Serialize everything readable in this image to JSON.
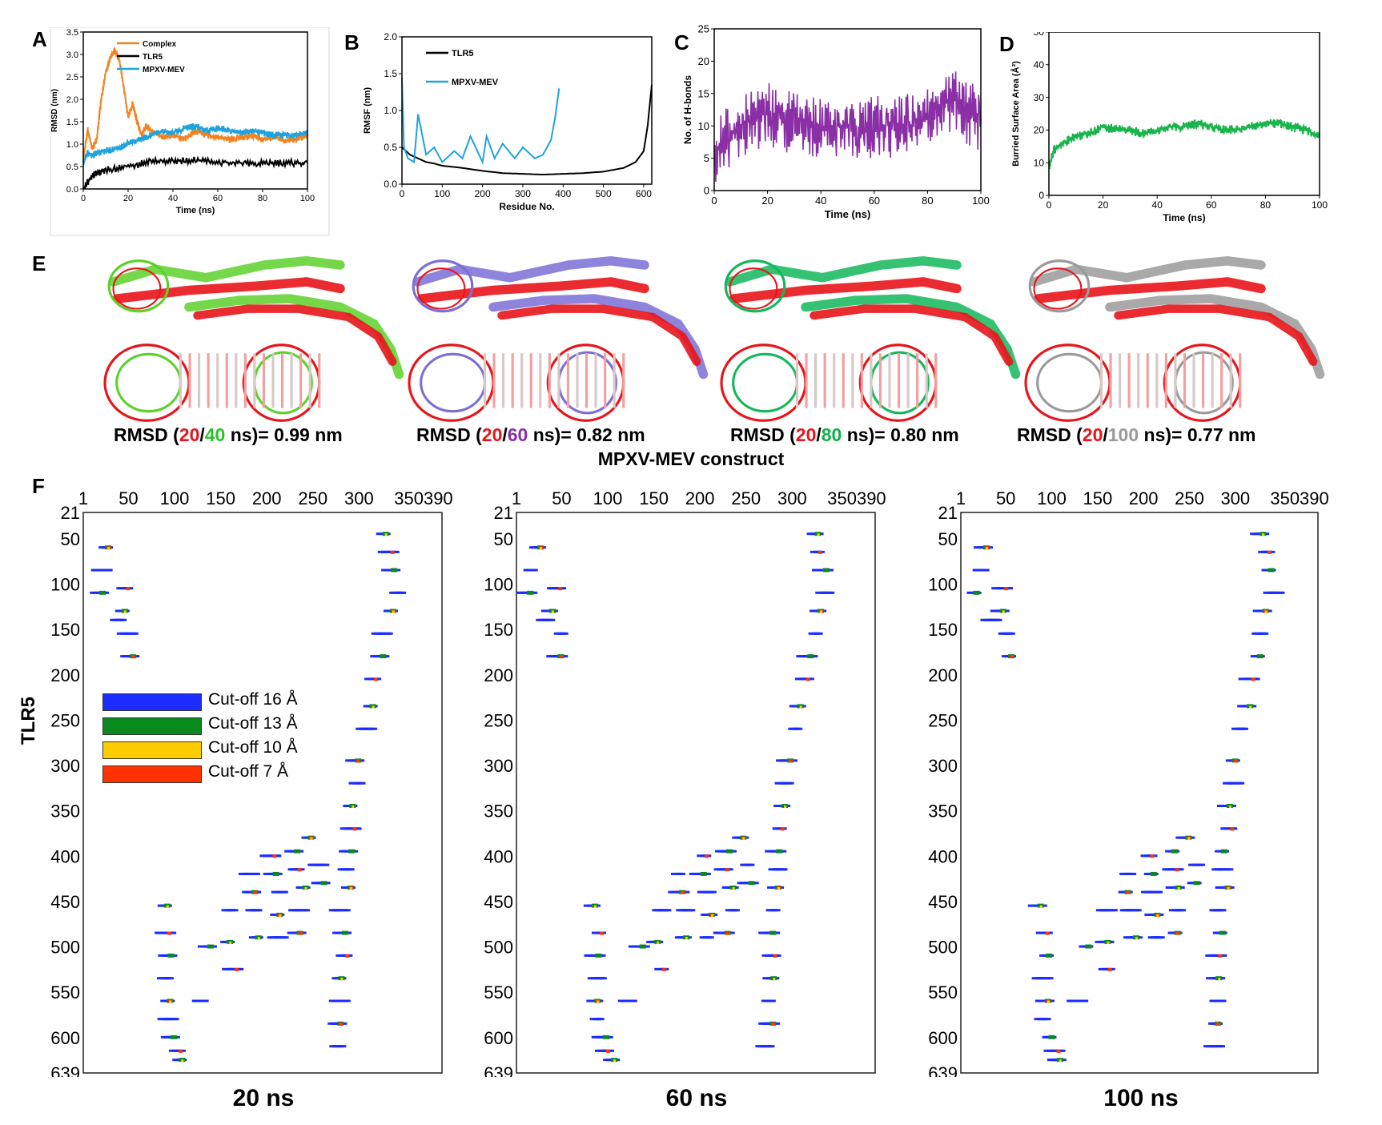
{
  "panels_top": [
    {
      "letter": "A",
      "xlabel": "Time (ns)",
      "ylabel": "RMSD (nm)"
    },
    {
      "letter": "B",
      "xlabel": "Residue No.",
      "ylabel": "RMSF (nm)"
    },
    {
      "letter": "C",
      "xlabel": "Time (ns)",
      "ylabel": "No. of H-bonds"
    },
    {
      "letter": "D",
      "xlabel": "Time (ns)",
      "ylabel": "Burried Surface Area (Å²)"
    }
  ],
  "panel_e": {
    "letter": "E",
    "captions": [
      {
        "prefix": "RMSD (",
        "a": "20",
        "sep": "/",
        "b": "40",
        "suffix": " ns)= 0.99 nm"
      },
      {
        "prefix": "RMSD (",
        "a": "20",
        "sep": "/",
        "b": "60",
        "suffix": " ns)= 0.82 nm"
      },
      {
        "prefix": "RMSD (",
        "a": "20",
        "sep": "/",
        "b": "80",
        "suffix": " ns)= 0.80 nm"
      },
      {
        "prefix": "RMSD (",
        "a": "20",
        "sep": "/",
        "b": "100",
        "suffix": " ns)= 0.77 nm"
      }
    ],
    "colors": {
      "ref": "#e8141a",
      "s40": "#5cd12a",
      "s60": "#7b6fd6",
      "s80": "#12b85a",
      "s100": "#9a9a9a"
    }
  },
  "panel_f": {
    "letter": "F",
    "construct_label": "MPXV-MEV construct",
    "y_label": "TLR5",
    "time_labels": [
      "20 ns",
      "60 ns",
      "100 ns"
    ],
    "legend": [
      {
        "label": "Cut-off 16 Å",
        "color": "#1a2cff"
      },
      {
        "label": "Cut-off 13 Å",
        "color": "#0a8a1e"
      },
      {
        "label": "Cut-off 10 Å",
        "color": "#ffcc00"
      },
      {
        "label": "Cut-off 7 Å",
        "color": "#ff3300"
      }
    ]
  },
  "chart_data": [
    {
      "type": "line",
      "id": "A",
      "xlabel": "Time (ns)",
      "ylabel": "RMSD (nm)",
      "xlim": [
        0,
        100
      ],
      "ylim": [
        0,
        3.5
      ],
      "xticks": [
        "0",
        "20",
        "40",
        "60",
        "80",
        "100"
      ],
      "yticks": [
        "0.0",
        "0.5",
        "1.0",
        "1.5",
        "2.0",
        "2.5",
        "3.0",
        "3.5"
      ],
      "legend": "top-left",
      "series": [
        {
          "name": "Complex",
          "color": "#f5821f",
          "x": [
            0,
            2,
            4,
            6,
            8,
            10,
            12,
            14,
            16,
            18,
            20,
            22,
            24,
            26,
            28,
            30,
            35,
            40,
            45,
            50,
            55,
            60,
            65,
            70,
            75,
            80,
            85,
            90,
            95,
            100
          ],
          "y": [
            0.7,
            1.3,
            0.9,
            1.1,
            2.0,
            2.6,
            2.9,
            3.1,
            2.9,
            2.3,
            1.6,
            1.9,
            1.5,
            1.2,
            1.4,
            1.3,
            1.15,
            1.2,
            1.1,
            1.3,
            1.2,
            1.15,
            1.1,
            1.15,
            1.2,
            1.1,
            1.15,
            1.1,
            1.1,
            1.2
          ]
        },
        {
          "name": "TLR5",
          "color": "#000000",
          "x": [
            0,
            2,
            4,
            6,
            10,
            20,
            30,
            40,
            50,
            60,
            70,
            80,
            90,
            100
          ],
          "y": [
            0.0,
            0.15,
            0.3,
            0.35,
            0.42,
            0.5,
            0.6,
            0.62,
            0.65,
            0.6,
            0.58,
            0.57,
            0.58,
            0.58
          ]
        },
        {
          "name": "MPXV-MEV",
          "color": "#1fa3dc",
          "x": [
            0,
            2,
            4,
            6,
            10,
            15,
            20,
            25,
            30,
            35,
            40,
            45,
            50,
            55,
            60,
            65,
            70,
            75,
            80,
            85,
            90,
            95,
            100
          ],
          "y": [
            0.6,
            0.8,
            0.75,
            0.8,
            0.85,
            0.9,
            1.0,
            1.1,
            1.2,
            1.3,
            1.25,
            1.35,
            1.4,
            1.3,
            1.35,
            1.3,
            1.25,
            1.3,
            1.25,
            1.2,
            1.2,
            1.2,
            1.25
          ]
        }
      ]
    },
    {
      "type": "line",
      "id": "B",
      "xlabel": "Residue No.",
      "ylabel": "RMSF (nm)",
      "xlim": [
        0,
        620
      ],
      "ylim": [
        0,
        2.0
      ],
      "xticks": [
        "0",
        "100",
        "200",
        "300",
        "400",
        "500",
        "600"
      ],
      "yticks": [
        "0.0",
        "0.5",
        "1.0",
        "1.5",
        "2.0"
      ],
      "legend": "top-center",
      "series": [
        {
          "name": "TLR5",
          "color": "#000000",
          "x": [
            0,
            20,
            40,
            60,
            80,
            100,
            150,
            200,
            250,
            300,
            350,
            400,
            450,
            500,
            550,
            580,
            600,
            610,
            620
          ],
          "y": [
            0.5,
            0.4,
            0.35,
            0.3,
            0.28,
            0.25,
            0.22,
            0.18,
            0.15,
            0.14,
            0.13,
            0.14,
            0.15,
            0.17,
            0.22,
            0.3,
            0.45,
            0.8,
            1.35
          ]
        },
        {
          "name": "MPXV-MEV",
          "color": "#1fa3dc",
          "x": [
            0,
            5,
            15,
            30,
            40,
            60,
            80,
            100,
            130,
            150,
            170,
            200,
            210,
            230,
            250,
            280,
            300,
            330,
            350,
            370,
            380,
            390
          ],
          "y": [
            1.45,
            0.5,
            0.35,
            0.3,
            0.95,
            0.4,
            0.5,
            0.3,
            0.45,
            0.35,
            0.65,
            0.3,
            0.65,
            0.35,
            0.55,
            0.35,
            0.5,
            0.35,
            0.4,
            0.6,
            0.9,
            1.3
          ]
        }
      ]
    },
    {
      "type": "line",
      "id": "C",
      "xlabel": "Time (ns)",
      "ylabel": "No. of H-bonds",
      "xlim": [
        0,
        100
      ],
      "ylim": [
        0,
        25
      ],
      "xticks": [
        "0",
        "20",
        "40",
        "60",
        "80",
        "100"
      ],
      "yticks": [
        "0",
        "5",
        "10",
        "15",
        "20",
        "25"
      ],
      "series": [
        {
          "name": "",
          "color": "#8a2fa6",
          "x": [
            0,
            5,
            10,
            15,
            20,
            25,
            30,
            35,
            40,
            45,
            50,
            55,
            60,
            65,
            70,
            75,
            80,
            85,
            90,
            95,
            100
          ],
          "y": [
            6,
            8,
            10,
            11,
            12,
            11,
            10,
            10,
            10,
            10,
            10,
            9,
            10,
            10,
            10,
            10,
            11,
            13,
            14,
            12,
            11
          ]
        }
      ]
    },
    {
      "type": "line",
      "id": "D",
      "xlabel": "Time (ns)",
      "ylabel": "Burried Surface Area (Å²)",
      "xlim": [
        0,
        100
      ],
      "ylim": [
        0,
        50
      ],
      "xticks": [
        "0",
        "20",
        "40",
        "60",
        "80",
        "100"
      ],
      "yticks": [
        "0",
        "10",
        "20",
        "30",
        "40",
        "50"
      ],
      "series": [
        {
          "name": "",
          "color": "#19b44b",
          "x": [
            0,
            2,
            5,
            10,
            15,
            20,
            25,
            30,
            35,
            40,
            45,
            50,
            55,
            60,
            65,
            70,
            75,
            80,
            85,
            90,
            95,
            100
          ],
          "y": [
            9,
            14,
            16,
            18,
            19,
            21,
            20,
            20,
            19,
            20,
            21,
            21,
            22,
            21,
            20,
            20,
            21,
            22,
            22,
            21,
            20,
            18
          ]
        }
      ]
    },
    {
      "type": "scatter",
      "id": "F",
      "title": "",
      "xlabel": "MPXV-MEV construct",
      "ylabel": "TLR5",
      "xticks": [
        "1",
        "50",
        "100",
        "150",
        "200",
        "250",
        "300",
        "350390"
      ],
      "yticks": [
        "21",
        "50",
        "100",
        "150",
        "200",
        "250",
        "300",
        "350",
        "400",
        "450",
        "500",
        "550",
        "600",
        "639"
      ],
      "xlim": [
        1,
        390
      ],
      "ylim": [
        21,
        639
      ],
      "panels": [
        "20 ns",
        "60 ns",
        "100 ns"
      ]
    }
  ]
}
